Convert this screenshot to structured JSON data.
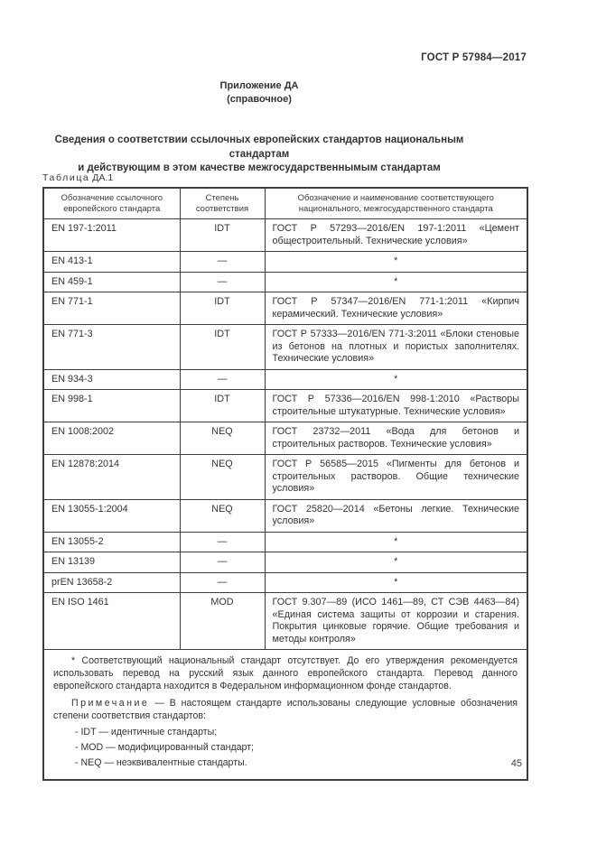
{
  "header": {
    "code": "ГОСТ Р 57984—2017"
  },
  "appendix": {
    "title": "Приложение ДА",
    "subtitle": "(справочное)"
  },
  "section_title": {
    "line1": "Сведения о соответствии ссылочных европейских стандартов национальным стандартам",
    "line2": "и действующим в этом качестве межгосударственнымым стандартам"
  },
  "table": {
    "label_word": "Таблица",
    "label_number": "ДА.1",
    "columns": [
      "Обозначение ссылочного европейского стандарта",
      "Степень соответствия",
      "Обозначение и наименование соответствующего национального, межгосударственного стандарта"
    ],
    "rows": [
      {
        "standard": "EN 197-1:2011",
        "degree": "IDT",
        "match": "ГОСТ Р 57293—2016/EN 197-1:2011 «Цемент общестроительный. Технические условия»"
      },
      {
        "standard": "EN 413-1",
        "degree": "—",
        "match": "*"
      },
      {
        "standard": "EN 459-1",
        "degree": "—",
        "match": "*"
      },
      {
        "standard": "EN 771-1",
        "degree": "IDT",
        "match": "ГОСТ Р 57347—2016/EN 771-1:2011 «Кирпич керамический. Технические условия»"
      },
      {
        "standard": "EN 771-3",
        "degree": "IDT",
        "match": "ГОСТ Р 57333—2016/EN 771-3:2011 «Блоки стеновые из бетонов на плотных и пористых заполнителях. Технические условия»"
      },
      {
        "standard": "EN 934-3",
        "degree": "—",
        "match": "*"
      },
      {
        "standard": "EN 998-1",
        "degree": "IDT",
        "match": "ГОСТ Р 57336—2016/EN 998-1:2010 «Растворы строительные штукатурные. Технические условия»"
      },
      {
        "standard": "EN 1008:2002",
        "degree": "NEQ",
        "match": "ГОСТ 23732—2011 «Вода для бетонов и строительных растворов. Технические условия»"
      },
      {
        "standard": "EN 12878:2014",
        "degree": "NEQ",
        "match": "ГОСТ Р 56585—2015 «Пигменты для бетонов и строительных растворов. Общие технические условия»"
      },
      {
        "standard": "EN 13055-1:2004",
        "degree": "NEQ",
        "match": "ГОСТ 25820—2014 «Бетоны легкие. Технические условия»"
      },
      {
        "standard": "EN 13055-2",
        "degree": "—",
        "match": "*"
      },
      {
        "standard": "EN 13139",
        "degree": "—",
        "match": "*"
      },
      {
        "standard": "prEN 13658-2",
        "degree": "—",
        "match": "*"
      },
      {
        "standard": "EN ISO 1461",
        "degree": "MOD",
        "match": "ГОСТ 9.307—89 (ИСО 1461—89, СТ СЭВ 4463—84) «Единая система защиты от коррозии и старения. Покрытия цинковые горячие. Общие требования и методы контроля»"
      }
    ],
    "footnote": "* Соответствующий национальный стандарт отсутствует. До его утверждения рекомендуется использовать перевод на русский язык данного европейского стандарта. Перевод данного европейского стандарта находится в Федеральном информационном фонде стандартов.",
    "note_label": "Примечание",
    "note_text": "— В настоящем стандарте использованы следующие условные обозначения степени соответствия стандартов:",
    "note_items": [
      "- IDT — идентичные стандарты;",
      "- MOD — модифицированный стандарт;",
      "- NEQ — неэквивалентные стандарты."
    ]
  },
  "page_number": "45"
}
